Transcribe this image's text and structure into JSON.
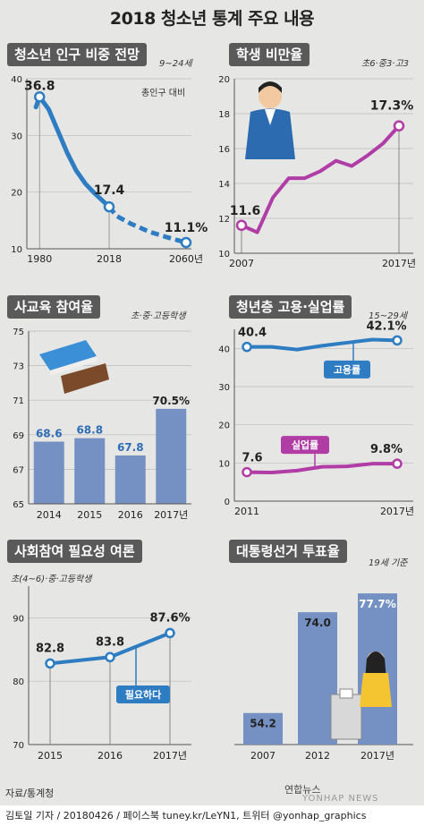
{
  "title": "2018 청소년 통계 주요 내용",
  "source": "자료/통계청",
  "credit": "김토일 기자 / 20180426 / 페이스북 tuney.kr/LeYN1, 트위터 @yonhap_graphics",
  "logo": "연합뉴스",
  "logo_sub": "YONHAP NEWS",
  "colors": {
    "blue": "#2e7cc2",
    "dash": "#2e7cc2",
    "purple": "#b03ca6",
    "bar": "#7590c2",
    "panel": "#5a5a5a"
  },
  "chart_data": [
    {
      "type": "line",
      "title": "청소년 인구 비중 전망",
      "subtitle": "9~24세",
      "note": "총인구 대비",
      "x_ticks": [
        "1980",
        "2018",
        "2060년"
      ],
      "x": [
        1978,
        1980,
        1985,
        1990,
        1995,
        2000,
        2005,
        2010,
        2015,
        2018,
        2022,
        2030,
        2040,
        2050,
        2060
      ],
      "y": [
        35.0,
        36.8,
        34.6,
        30.8,
        27.0,
        23.8,
        21.5,
        19.8,
        18.3,
        17.4,
        15.8,
        14.4,
        13.0,
        12.0,
        11.1
      ],
      "solid_until": 2018,
      "labels": {
        "first": "36.8",
        "mid": "17.4",
        "last": "11.1%"
      },
      "y_ticks": [
        "10",
        "20",
        "30",
        "40"
      ],
      "ylim": [
        10,
        40
      ]
    },
    {
      "type": "line",
      "title": "학생 비만율",
      "subtitle": "초6·중3·고3",
      "x_ticks": [
        "2007",
        "2017년"
      ],
      "x": [
        2007,
        2008,
        2009,
        2010,
        2011,
        2012,
        2013,
        2014,
        2015,
        2016,
        2017
      ],
      "y": [
        11.6,
        11.2,
        13.2,
        14.3,
        14.3,
        14.7,
        15.3,
        15.0,
        15.6,
        16.3,
        17.3
      ],
      "labels": {
        "first": "11.6",
        "last": "17.3%"
      },
      "y_ticks": [
        "10",
        "12",
        "14",
        "16",
        "18",
        "20"
      ],
      "ylim": [
        10,
        20
      ]
    },
    {
      "type": "bar",
      "title": "사교육 참여율",
      "subtitle": "초·중·고등학생",
      "categories": [
        "2014",
        "2015",
        "2016",
        "2017년"
      ],
      "values": [
        68.6,
        68.8,
        67.8,
        70.5
      ],
      "labels": [
        "68.6",
        "68.8",
        "67.8",
        "70.5%"
      ],
      "y_ticks": [
        "65",
        "67",
        "69",
        "71",
        "73",
        "75"
      ],
      "ylim": [
        65,
        75
      ]
    },
    {
      "type": "line",
      "title": "청년층 고용·실업률",
      "subtitle": "15~29세",
      "x_ticks": [
        "2011",
        "2017년"
      ],
      "series": [
        {
          "name": "고용률",
          "x": [
            2011,
            2012,
            2013,
            2014,
            2015,
            2016,
            2017
          ],
          "values": [
            40.4,
            40.4,
            39.7,
            40.7,
            41.5,
            42.3,
            42.1
          ],
          "label_first": "40.4",
          "label_last": "42.1%"
        },
        {
          "name": "실업률",
          "x": [
            2011,
            2012,
            2013,
            2014,
            2015,
            2016,
            2017
          ],
          "values": [
            7.6,
            7.5,
            8.0,
            9.0,
            9.1,
            9.8,
            9.8
          ],
          "label_first": "7.6",
          "label_last": "9.8%"
        }
      ],
      "y_ticks": [
        "0",
        "10",
        "20",
        "30",
        "40"
      ],
      "ylim": [
        0,
        45
      ]
    },
    {
      "type": "line",
      "title": "사회참여 필요성 여론",
      "subtitle": "초(4~6)·중·고등학생",
      "x": [
        2015,
        2016,
        2017
      ],
      "x_ticks": [
        "2015",
        "2016",
        "2017년"
      ],
      "y": [
        82.8,
        83.8,
        87.6
      ],
      "labels": [
        "82.8",
        "83.8",
        "87.6%"
      ],
      "series_name": "필요하다",
      "y_ticks": [
        "70",
        "80",
        "90"
      ],
      "ylim": [
        70,
        95
      ]
    },
    {
      "type": "bar",
      "title": "대통령선거 투표율",
      "subtitle": "19세 기준",
      "categories": [
        "2007",
        "2012",
        "2017년"
      ],
      "values": [
        54.2,
        74.0,
        77.7
      ],
      "labels": [
        "54.2",
        "74.0",
        "77.7%"
      ],
      "ylim": [
        48,
        80
      ]
    }
  ]
}
